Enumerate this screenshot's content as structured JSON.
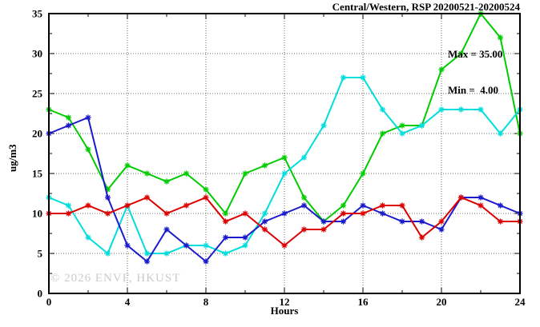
{
  "title": "Central/Western, RSP 20200521-20200524",
  "annotations": {
    "max_label": "Max = 35.00",
    "min_label": "Min =  4.00"
  },
  "watermark": "© 2026 ENVF, HKUST",
  "chart_data": {
    "type": "line",
    "title": "Central/Western, RSP 20200521-20200524",
    "xlabel": "Hours",
    "ylabel": "ug/m3",
    "xlim": [
      0,
      24
    ],
    "ylim": [
      0,
      35
    ],
    "x_major_ticks": [
      0,
      4,
      8,
      12,
      16,
      20,
      24
    ],
    "x_minor_step": 2,
    "y_major_ticks": [
      0,
      5,
      10,
      15,
      20,
      25,
      30,
      35
    ],
    "y_minor_step": 2.5,
    "grid": true,
    "legend_position": "none",
    "marker": "asterisk",
    "x": [
      0,
      1,
      2,
      3,
      4,
      5,
      6,
      7,
      8,
      9,
      10,
      11,
      12,
      13,
      14,
      15,
      16,
      17,
      18,
      19,
      20,
      21,
      22,
      23,
      24
    ],
    "series": [
      {
        "name": "green",
        "color": "#00cc00",
        "values": [
          23,
          22,
          18,
          13,
          16,
          15,
          14,
          15,
          13,
          10,
          15,
          16,
          17,
          12,
          9,
          11,
          15,
          20,
          21,
          21,
          28,
          30,
          35,
          32,
          20
        ]
      },
      {
        "name": "cyan",
        "color": "#00dddd",
        "values": [
          12,
          11,
          7,
          5,
          11,
          5,
          5,
          6,
          6,
          5,
          6,
          10,
          15,
          17,
          21,
          27,
          27,
          23,
          20,
          21,
          23,
          23,
          23,
          20,
          23
        ]
      },
      {
        "name": "blue",
        "color": "#1a1acc",
        "values": [
          20,
          21,
          22,
          12,
          6,
          4,
          8,
          6,
          4,
          7,
          7,
          9,
          10,
          11,
          9,
          9,
          11,
          10,
          9,
          9,
          8,
          12,
          12,
          11,
          10
        ]
      },
      {
        "name": "red",
        "color": "#dd0000",
        "values": [
          10,
          10,
          11,
          10,
          11,
          12,
          10,
          11,
          12,
          9,
          10,
          8,
          6,
          8,
          8,
          10,
          10,
          11,
          11,
          7,
          9,
          12,
          11,
          9,
          9
        ]
      }
    ],
    "stats": {
      "max": 35.0,
      "min": 4.0
    }
  }
}
